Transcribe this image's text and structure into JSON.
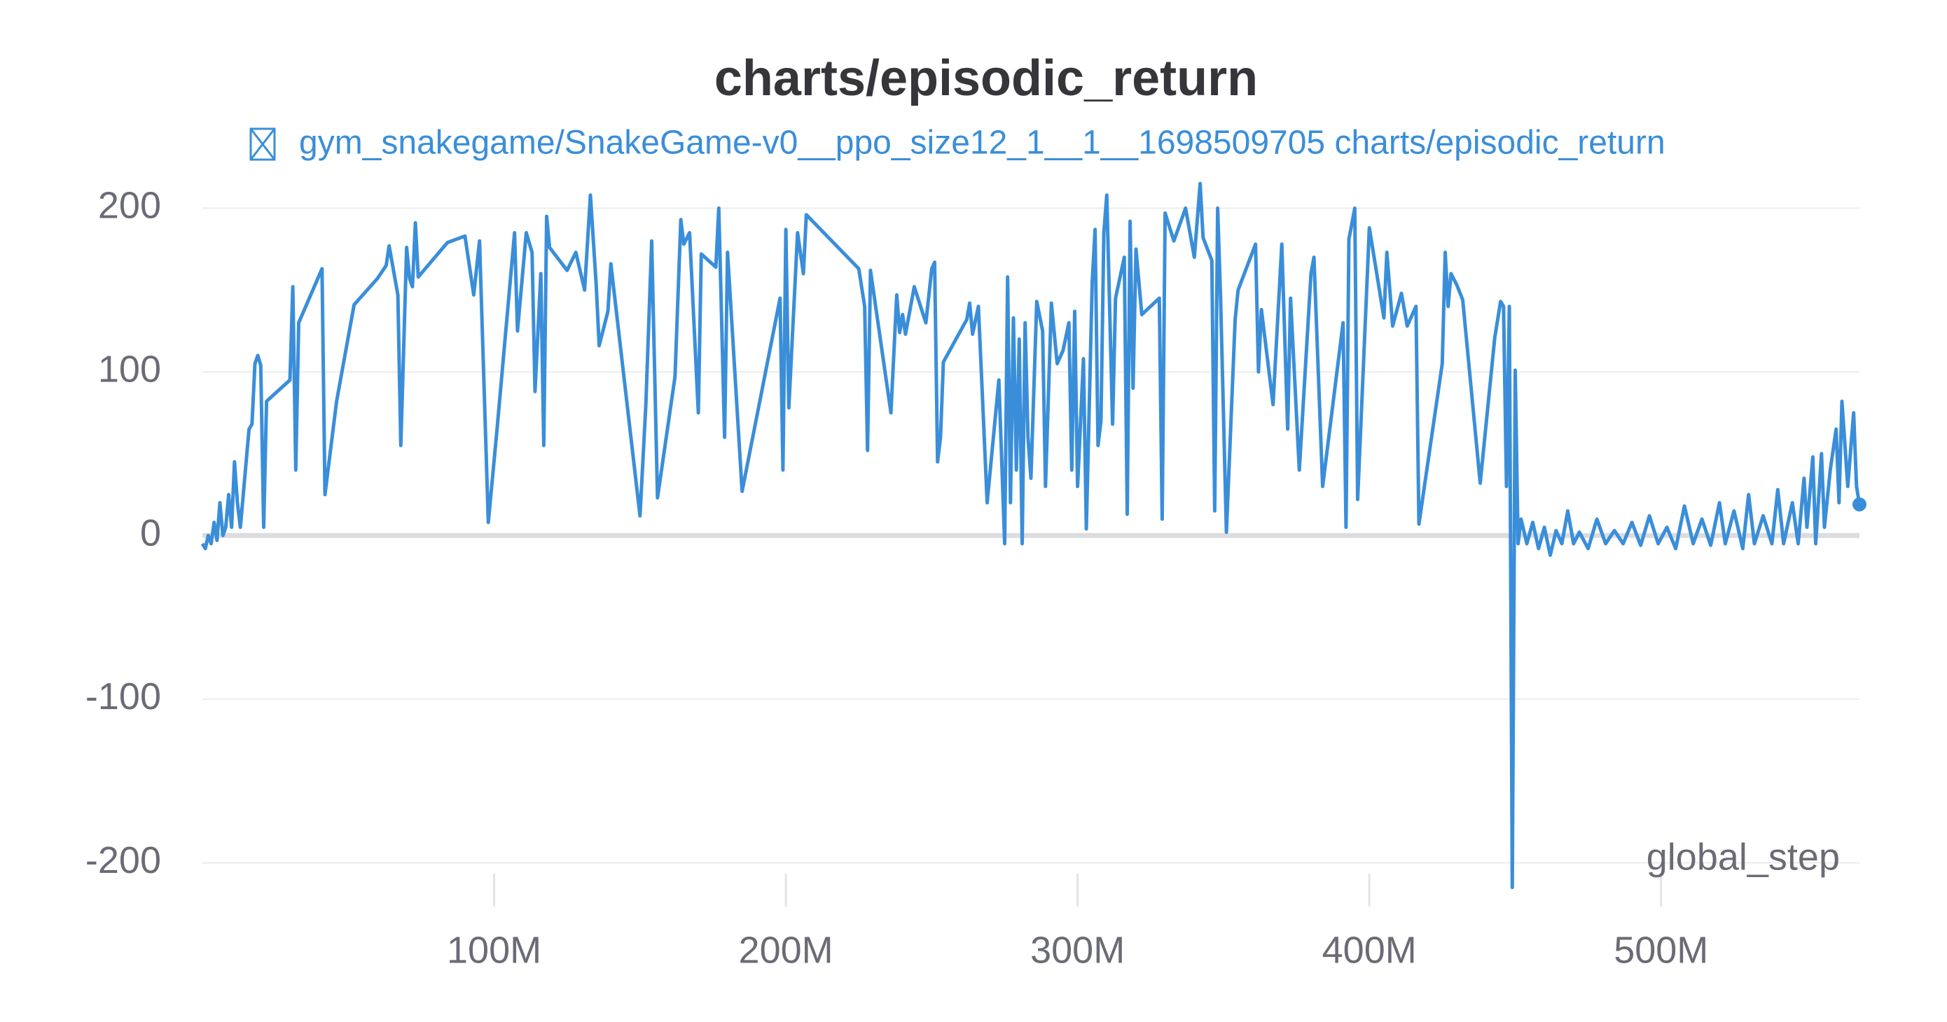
{
  "chart_data": {
    "type": "line",
    "title": "charts/episodic_return",
    "xlabel": "global_step",
    "x": [
      0.0,
      1000000.0,
      2000000.0,
      3000000.0,
      4000000.0,
      5000000.0,
      6000000.0,
      7000000.0,
      8000000.0,
      9000000.0,
      10000000.0,
      11000000.0,
      12000000.0,
      13000000.0,
      16000000.0,
      17000000.0,
      18000000.0,
      19000000.0,
      20000000.0,
      21000000.0,
      22000000.0,
      30000000.0,
      31000000.0,
      32000000.0,
      33000000.0,
      41000000.0,
      42000000.0,
      46000000.0,
      52000000.0,
      60000000.0,
      63000000.0,
      64000000.0,
      67000000.0,
      68000000.0,
      70000000.0,
      71000000.0,
      72000000.0,
      73000000.0,
      74000000.0,
      84000000.0,
      90000000.0,
      93000000.0,
      95000000.0,
      98000000.0,
      101000000.0,
      107000000.0,
      108000000.0,
      111000000.0,
      113000000.0,
      114000000.0,
      116000000.0,
      117000000.0,
      118000000.0,
      119000000.0,
      125000000.0,
      128000000.0,
      131000000.0,
      133000000.0,
      135000000.0,
      136000000.0,
      139000000.0,
      140000000.0,
      150000000.0,
      152000000.0,
      154000000.0,
      156000000.0,
      162000000.0,
      164000000.0,
      165000000.0,
      167000000.0,
      170000000.0,
      171000000.0,
      176000000.0,
      177000000.0,
      179000000.0,
      180000000.0,
      185000000.0,
      198000000.0,
      199000000.0,
      200000000.0,
      201000000.0,
      204000000.0,
      206000000.0,
      207000000.0,
      225000000.0,
      227000000.0,
      228000000.0,
      229000000.0,
      236000000.0,
      238000000.0,
      239000000.0,
      240000000.0,
      241000000.0,
      244000000.0,
      248000000.0,
      250000000.0,
      251000000.0,
      252000000.0,
      253000000.0,
      254000000.0,
      262000000.0,
      263000000.0,
      264000000.0,
      266000000.0,
      269000000.0,
      273000000.0,
      275000000.0,
      276000000.0,
      277000000.0,
      278000000.0,
      279000000.0,
      280000000.0,
      281000000.0,
      282000000.0,
      283000000.0,
      284000000.0,
      286000000.0,
      288000000.0,
      289000000.0,
      291000000.0,
      293000000.0,
      295000000.0,
      297000000.0,
      298000000.0,
      299000000.0,
      300000000.0,
      302000000.0,
      303000000.0,
      305000000.0,
      306000000.0,
      307000000.0,
      308000000.0,
      309000000.0,
      310000000.0,
      312000000.0,
      313000000.0,
      316000000.0,
      317000000.0,
      318000000.0,
      319000000.0,
      320000000.0,
      322000000.0,
      328000000.0,
      329000000.0,
      330000000.0,
      333000000.0,
      337000000.0,
      340000000.0,
      342000000.0,
      343000000.0,
      346000000.0,
      347000000.0,
      348000000.0,
      349000000.0,
      351000000.0,
      354000000.0,
      355000000.0,
      361000000.0,
      362000000.0,
      363000000.0,
      367000000.0,
      370000000.0,
      372000000.0,
      373000000.0,
      376000000.0,
      380000000.0,
      381000000.0,
      384000000.0,
      391000000.0,
      392000000.0,
      393000000.0,
      395000000.0,
      396000000.0,
      400000000.0,
      405000000.0,
      406000000.0,
      408000000.0,
      411000000.0,
      413000000.0,
      416000000.0,
      417000000.0,
      425000000.0,
      426000000.0,
      427000000.0,
      428000000.0,
      430000000.0,
      432000000.0,
      438000000.0,
      443000000.0,
      445000000.0,
      446000000.0,
      447000000.0,
      448000000.0,
      449000000.0,
      450000000.0,
      451000000.0,
      452000000.0,
      454000000.0,
      456000000.0,
      458000000.0,
      460000000.0,
      462000000.0,
      464000000.0,
      466000000.0,
      468000000.0,
      470000000.0,
      472000000.0,
      475000000.0,
      478000000.0,
      481000000.0,
      484000000.0,
      487000000.0,
      490000000.0,
      493000000.0,
      496000000.0,
      499000000.0,
      502000000.0,
      505000000.0,
      508000000.0,
      511000000.0,
      514000000.0,
      517000000.0,
      520000000.0,
      522000000.0,
      525000000.0,
      528000000.0,
      530000000.0,
      532000000.0,
      535000000.0,
      538000000.0,
      540000000.0,
      542000000.0,
      545000000.0,
      547000000.0,
      549000000.0,
      550000000.0,
      552000000.0,
      553000000.0,
      555000000.0,
      556000000.0,
      558000000.0,
      560000000.0,
      561000000.0,
      562000000.0,
      564000000.0,
      566000000.0,
      567000000.0,
      568000000.0
    ],
    "series": [
      {
        "name": "gym_snakegame/SnakeGame-v0__ppo_size12_1__1__1698509705 charts/episodic_return",
        "color": "#3a8ed9",
        "values": [
          -5,
          -8,
          0,
          -5,
          8,
          -3,
          20,
          0,
          5,
          25,
          5,
          45,
          20,
          5,
          65,
          68,
          105,
          110,
          104,
          5,
          82,
          95,
          152,
          40,
          130,
          163,
          25,
          82,
          141,
          157,
          165,
          177,
          147,
          55,
          176,
          157,
          152,
          191,
          158,
          179,
          183,
          147,
          180,
          8,
          65,
          185,
          125,
          185,
          173,
          88,
          160,
          55,
          195,
          176,
          162,
          173,
          150,
          208,
          153,
          116,
          137,
          166,
          12,
          80,
          180,
          23,
          97,
          193,
          178,
          185,
          75,
          172,
          164,
          200,
          60,
          173,
          27,
          145,
          40,
          187,
          78,
          185,
          160,
          196,
          163,
          140,
          52,
          162,
          75,
          147,
          124,
          135,
          123,
          152,
          130,
          163,
          167,
          45,
          60,
          106,
          132,
          142,
          123,
          140,
          20,
          95,
          -5,
          158,
          20,
          133,
          40,
          120,
          -5,
          130,
          60,
          35,
          143,
          125,
          30,
          142,
          105,
          113,
          130,
          40,
          137,
          30,
          108,
          4,
          155,
          187,
          55,
          70,
          185,
          208,
          68,
          145,
          170,
          13,
          192,
          90,
          175,
          135,
          145,
          10,
          197,
          180,
          200,
          170,
          215,
          182,
          168,
          15,
          200,
          145,
          2,
          132,
          150,
          178,
          100,
          138,
          80,
          178,
          65,
          145,
          40,
          160,
          170,
          30,
          130,
          5,
          181,
          200,
          22,
          188,
          133,
          173,
          128,
          148,
          128,
          140,
          7,
          105,
          173,
          140,
          160,
          153,
          144,
          32,
          121,
          143,
          140,
          30,
          140,
          -215,
          101,
          -5,
          10,
          -5,
          8,
          -8,
          5,
          -12,
          3,
          -5,
          15,
          -5,
          2,
          -8,
          10,
          -5,
          3,
          -5,
          8,
          -6,
          12,
          -5,
          5,
          -8,
          18,
          -5,
          10,
          -6,
          20,
          -5,
          15,
          -8,
          25,
          -5,
          12,
          -5,
          28,
          -5,
          20,
          -5,
          35,
          5,
          48,
          -5,
          50,
          5,
          40,
          65,
          20,
          82,
          30,
          75,
          30,
          19
        ]
      }
    ],
    "xlim": [
      0,
      568000000.0
    ],
    "xticks": [
      {
        "value": 100000000,
        "label": "100M"
      },
      {
        "value": 200000000,
        "label": "200M"
      },
      {
        "value": 300000000,
        "label": "300M"
      },
      {
        "value": 400000000,
        "label": "400M"
      },
      {
        "value": 500000000,
        "label": "500M"
      }
    ],
    "ylim": [
      -216,
      216
    ],
    "yticks": [
      -200,
      -100,
      0,
      100,
      200
    ],
    "grid": true
  }
}
